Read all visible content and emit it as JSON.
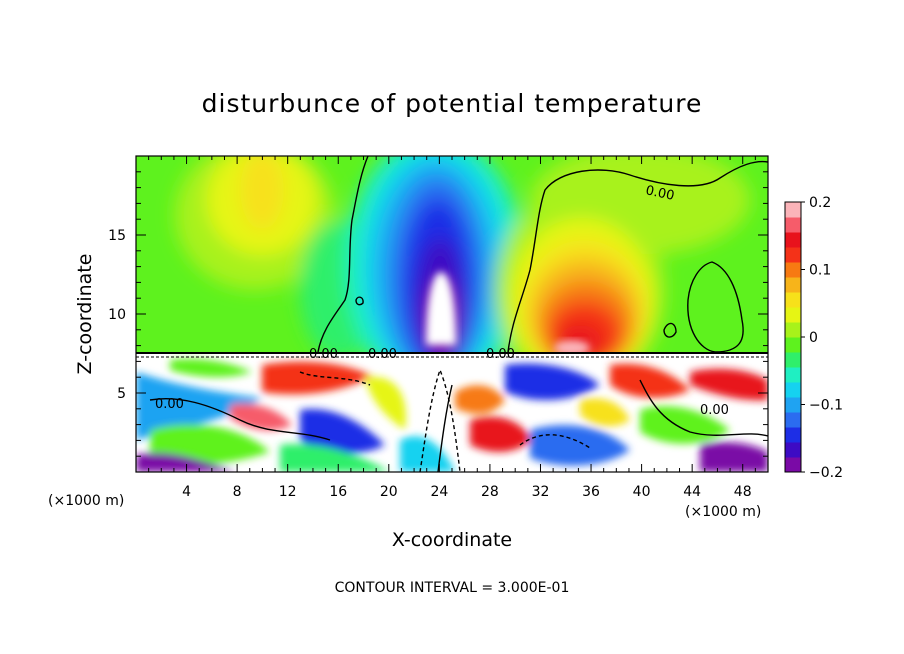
{
  "chart_data": {
    "type": "heatmap",
    "title": "disturbunce of potential temperature",
    "xlabel": "X-coordinate",
    "ylabel": "Z-coordinate",
    "x_unit_left": "(×1000 m)",
    "x_unit_right": "(×1000 m)",
    "xlim": [
      0,
      50
    ],
    "ylim": [
      0,
      20
    ],
    "x_ticks": [
      4,
      8,
      12,
      16,
      20,
      24,
      28,
      32,
      36,
      40,
      44,
      48
    ],
    "x_tick_labels": [
      "4",
      "8",
      "12",
      "16",
      "20",
      "24",
      "28",
      "32",
      "36",
      "40",
      "44",
      "48"
    ],
    "y_ticks": [
      5,
      10,
      15
    ],
    "y_tick_labels": [
      "5",
      "10",
      "15"
    ],
    "colorbar": {
      "range": [
        -0.2,
        0.2
      ],
      "tick_values": [
        0.2,
        0.1,
        0,
        -0.1,
        -0.2
      ],
      "tick_labels": [
        "0.2",
        "0.1",
        "0",
        "−0.1",
        "−0.2"
      ],
      "colors": [
        "#7a0aa6",
        "#3d0bc4",
        "#1d2ee6",
        "#2b6cf0",
        "#1fa3f2",
        "#15d2f0",
        "#1fefc2",
        "#2fef6a",
        "#5ef21e",
        "#a8f21a",
        "#e6f514",
        "#f7e11a",
        "#f7b41a",
        "#f77a12",
        "#f43218",
        "#e8121c",
        "#f65c6a",
        "#fbb4b9"
      ]
    },
    "zero_contour_label": "0.00",
    "contour_interval_text": "CONTOUR INTERVAL = 3.000E-01",
    "features": [
      {
        "kind": "cold anomaly",
        "x_center": 24,
        "z_range": [
          7.5,
          20
        ],
        "min_value": -0.2
      },
      {
        "kind": "warm anomaly",
        "x_center": 35,
        "z_range": [
          7.5,
          16
        ],
        "max_value": 0.2
      },
      {
        "kind": "weak warm",
        "x_center": 10,
        "z_range": [
          14,
          20
        ],
        "max_value": 0.08
      },
      {
        "kind": "turbulent layer",
        "z_range": [
          0,
          7.5
        ]
      }
    ]
  }
}
